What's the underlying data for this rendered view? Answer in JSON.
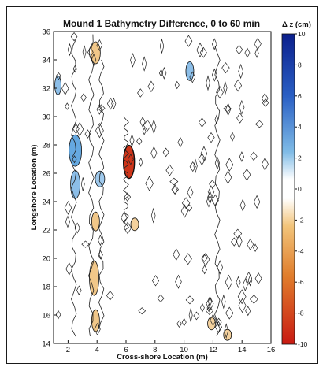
{
  "chart_data": {
    "type": "heatmap",
    "title": "Mound 1 Bathymetry Difference, 0 to 60 min",
    "xlabel": "Cross-shore Location (m)",
    "ylabel": "Longshore Location (m)",
    "xlim": [
      1,
      16
    ],
    "ylim": [
      14,
      36
    ],
    "xticks": [
      2,
      4,
      6,
      8,
      10,
      12,
      14,
      16
    ],
    "yticks": [
      14,
      16,
      18,
      20,
      22,
      24,
      26,
      28,
      30,
      32,
      34,
      36
    ],
    "colorbar": {
      "label": "Δ z (cm)",
      "range": [
        -10,
        10
      ],
      "ticks": [
        10,
        8,
        6,
        4,
        2,
        0,
        -2,
        -4,
        -6,
        -8,
        -10
      ],
      "colors": {
        "max": "#0b1f8c",
        "mid_pos": "#3f92d8",
        "near_zero": "#ffffff",
        "mid_neg": "#e8a23a",
        "min": "#c81a12"
      }
    },
    "grid": false,
    "features": [
      {
        "name": "deposition",
        "x": 6.2,
        "y": 26.8,
        "dz": -9
      },
      {
        "name": "deposition",
        "x": 3.9,
        "y": 34.5,
        "dz": -3
      },
      {
        "name": "deposition",
        "x": 3.9,
        "y": 22.6,
        "dz": -3
      },
      {
        "name": "deposition",
        "x": 3.8,
        "y": 18.6,
        "dz": -3
      },
      {
        "name": "deposition",
        "x": 3.9,
        "y": 15.6,
        "dz": -3
      },
      {
        "name": "deposition",
        "x": 6.6,
        "y": 22.4,
        "dz": -2.5
      },
      {
        "name": "deposition",
        "x": 11.9,
        "y": 15.4,
        "dz": -2.5
      },
      {
        "name": "deposition",
        "x": 13.0,
        "y": 14.6,
        "dz": -2.5
      },
      {
        "name": "erosion",
        "x": 1.3,
        "y": 32.2,
        "dz": 3
      },
      {
        "name": "erosion",
        "x": 2.5,
        "y": 27.6,
        "dz": 4
      },
      {
        "name": "erosion",
        "x": 2.5,
        "y": 25.2,
        "dz": 3
      },
      {
        "name": "erosion",
        "x": 4.2,
        "y": 25.6,
        "dz": 2.5
      },
      {
        "name": "erosion",
        "x": 10.4,
        "y": 33.2,
        "dz": 3
      }
    ]
  }
}
